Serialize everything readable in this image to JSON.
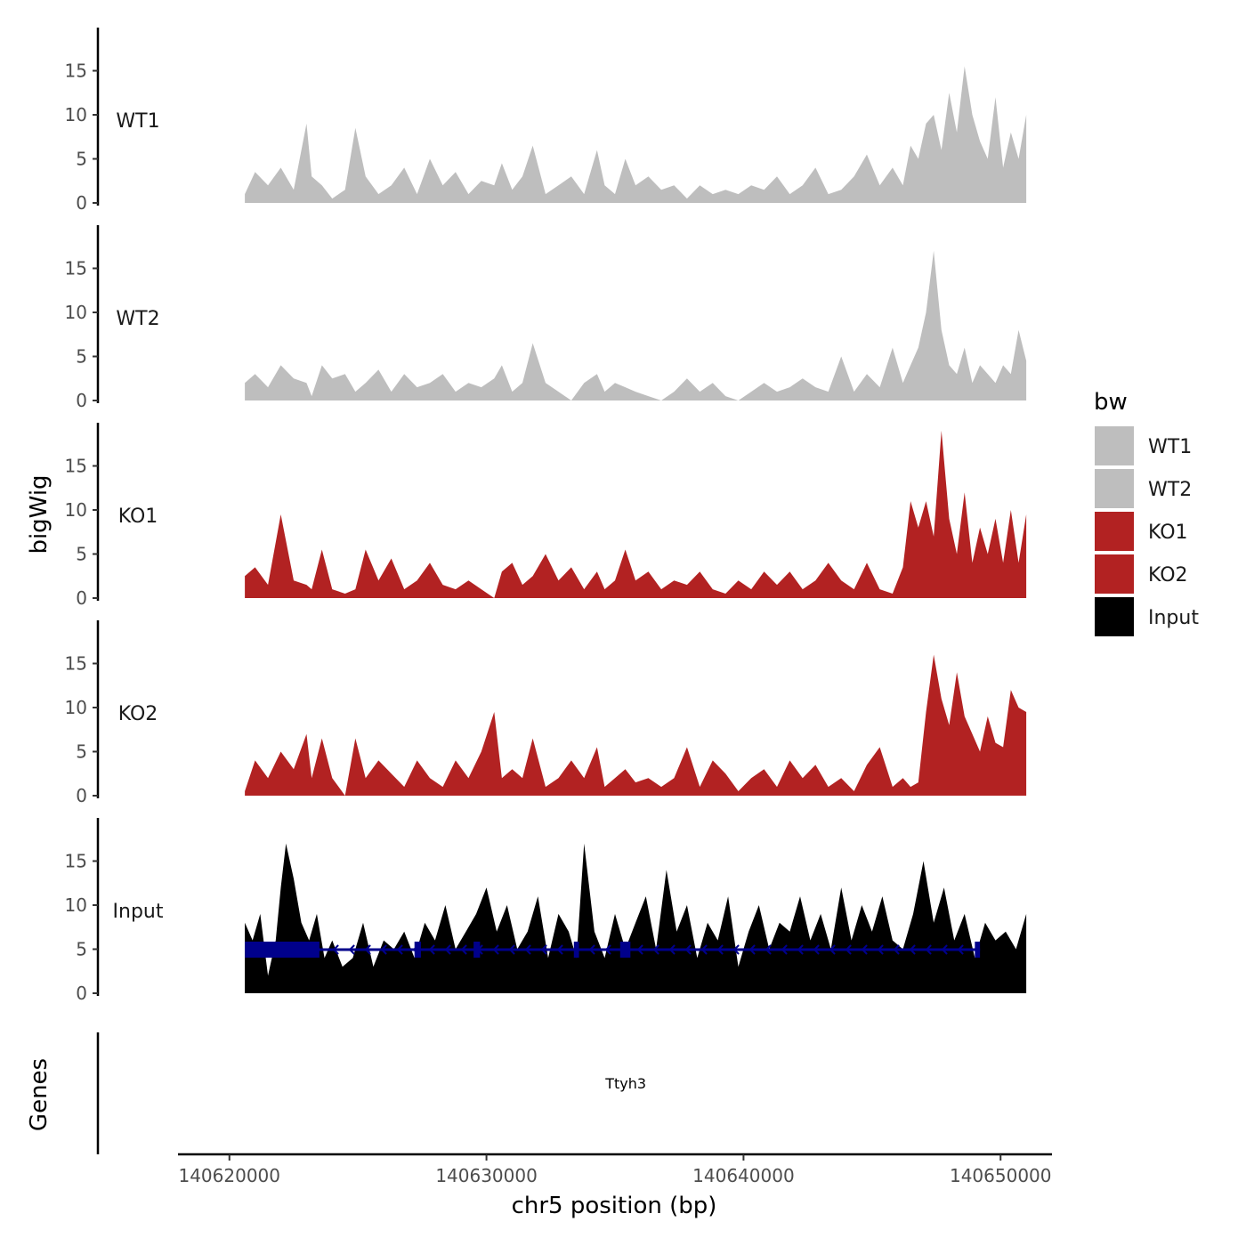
{
  "chart_data": {
    "type": "area",
    "xlabel": "chr5 position (bp)",
    "ylabel": "bigWig",
    "genes_label": "Genes",
    "xlim": [
      140618000,
      140652000
    ],
    "x_ticks": [
      140620000,
      140630000,
      140640000,
      140650000
    ],
    "x_tick_labels": [
      "140620000",
      "140630000",
      "140640000",
      "140650000"
    ],
    "ylim": [
      0,
      20
    ],
    "y_ticks": [
      0,
      5,
      10,
      15
    ],
    "y_tick_labels": [
      "0",
      "5",
      "10",
      "15"
    ],
    "legend": {
      "title": "bw",
      "entries": [
        {
          "label": "WT1",
          "color": "#bebebe"
        },
        {
          "label": "WT2",
          "color": "#bebebe"
        },
        {
          "label": "KO1",
          "color": "#b22222"
        },
        {
          "label": "KO2",
          "color": "#b22222"
        },
        {
          "label": "Input",
          "color": "#000000"
        }
      ]
    },
    "series": [
      {
        "name": "WT1",
        "color": "#bebebe",
        "x": [
          140620600,
          140621000,
          140621500,
          140622000,
          140622500,
          140623000,
          140623200,
          140623600,
          140624000,
          140624500,
          140624900,
          140625300,
          140625800,
          140626300,
          140626800,
          140627300,
          140627800,
          140628300,
          140628800,
          140629300,
          140629800,
          140630300,
          140630600,
          140631000,
          140631400,
          140631800,
          140632300,
          140632800,
          140633300,
          140633800,
          140634300,
          140634600,
          140635000,
          140635400,
          140635800,
          140636300,
          140636800,
          140637300,
          140637800,
          140638300,
          140638800,
          140639300,
          140639800,
          140640300,
          140640800,
          140641300,
          140641800,
          140642300,
          140642800,
          140643300,
          140643800,
          140644300,
          140644800,
          140645300,
          140645800,
          140646200,
          140646500,
          140646800,
          140647100,
          140647400,
          140647700,
          140648000,
          140648300,
          140648600,
          140648900,
          140649200,
          140649500,
          140649800,
          140650100,
          140650400,
          140650700,
          140651000
        ],
        "values": [
          1,
          3.5,
          2,
          4,
          1.5,
          9,
          3,
          2,
          0.5,
          1.5,
          8.5,
          3,
          1,
          2,
          4,
          1,
          5,
          2,
          3.5,
          1,
          2.5,
          2,
          4.5,
          1.5,
          3,
          6.5,
          1,
          2,
          3,
          1,
          6,
          2,
          1,
          5,
          2,
          3,
          1.5,
          2,
          0.5,
          2,
          1,
          1.5,
          1,
          2,
          1.5,
          3,
          1,
          2,
          4,
          1,
          1.5,
          3,
          5.5,
          2,
          4,
          2,
          6.5,
          5,
          9,
          10,
          6,
          12.5,
          8,
          15.5,
          10,
          7,
          5,
          12,
          4,
          8,
          5,
          10
        ]
      },
      {
        "name": "WT2",
        "color": "#bebebe",
        "x": [
          140620600,
          140621000,
          140621500,
          140622000,
          140622500,
          140623000,
          140623200,
          140623600,
          140624000,
          140624500,
          140624900,
          140625300,
          140625800,
          140626300,
          140626800,
          140627300,
          140627800,
          140628300,
          140628800,
          140629300,
          140629800,
          140630300,
          140630600,
          140631000,
          140631400,
          140631800,
          140632300,
          140632800,
          140633300,
          140633800,
          140634300,
          140634600,
          140635000,
          140635400,
          140635800,
          140636300,
          140636800,
          140637300,
          140637800,
          140638300,
          140638800,
          140639300,
          140639800,
          140640300,
          140640800,
          140641300,
          140641800,
          140642300,
          140642800,
          140643300,
          140643800,
          140644300,
          140644800,
          140645300,
          140645800,
          140646200,
          140646500,
          140646800,
          140647100,
          140647400,
          140647700,
          140648000,
          140648300,
          140648600,
          140648900,
          140649200,
          140649500,
          140649800,
          140650100,
          140650400,
          140650700,
          140651000
        ],
        "values": [
          2,
          3,
          1.5,
          4,
          2.5,
          2,
          0.5,
          4,
          2.5,
          3,
          1,
          2,
          3.5,
          1,
          3,
          1.5,
          2,
          3,
          1,
          2,
          1.5,
          2.5,
          4,
          1,
          2,
          6.5,
          2,
          1,
          0,
          2,
          3,
          1,
          2,
          1.5,
          1,
          0.5,
          0,
          1,
          2.5,
          1,
          2,
          0.5,
          0,
          1,
          2,
          1,
          1.5,
          2.5,
          1.5,
          1,
          5,
          1,
          3,
          1.5,
          6,
          2,
          4,
          6,
          10,
          17,
          8,
          4,
          3,
          6,
          2,
          4,
          3,
          2,
          4,
          3,
          8,
          4.5
        ]
      },
      {
        "name": "KO1",
        "color": "#b22222",
        "x": [
          140620600,
          140621000,
          140621500,
          140622000,
          140622500,
          140623000,
          140623200,
          140623600,
          140624000,
          140624500,
          140624900,
          140625300,
          140625800,
          140626300,
          140626800,
          140627300,
          140627800,
          140628300,
          140628800,
          140629300,
          140629800,
          140630300,
          140630600,
          140631000,
          140631400,
          140631800,
          140632300,
          140632800,
          140633300,
          140633800,
          140634300,
          140634600,
          140635000,
          140635400,
          140635800,
          140636300,
          140636800,
          140637300,
          140637800,
          140638300,
          140638800,
          140639300,
          140639800,
          140640300,
          140640800,
          140641300,
          140641800,
          140642300,
          140642800,
          140643300,
          140643800,
          140644300,
          140644800,
          140645300,
          140645800,
          140646200,
          140646500,
          140646800,
          140647100,
          140647400,
          140647700,
          140648000,
          140648300,
          140648600,
          140648900,
          140649200,
          140649500,
          140649800,
          140650100,
          140650400,
          140650700,
          140651000
        ],
        "values": [
          2.5,
          3.5,
          1.5,
          9.5,
          2,
          1.5,
          1,
          5.5,
          1,
          0.5,
          1,
          5.5,
          2,
          4.5,
          1,
          2,
          4,
          1.5,
          1,
          2,
          1,
          0,
          3,
          4,
          1.5,
          2.5,
          5,
          2,
          3.5,
          1,
          3,
          1,
          2,
          5.5,
          2,
          3,
          1,
          2,
          1.5,
          3,
          1,
          0.5,
          2,
          1,
          3,
          1.5,
          3,
          1,
          2,
          4,
          2,
          1,
          4,
          1,
          0.5,
          3.5,
          11,
          8,
          11,
          7,
          19,
          9,
          5,
          12,
          4,
          8,
          5,
          9,
          4,
          10,
          4,
          9.5
        ]
      },
      {
        "name": "KO2",
        "color": "#b22222",
        "x": [
          140620600,
          140621000,
          140621500,
          140622000,
          140622500,
          140623000,
          140623200,
          140623600,
          140624000,
          140624500,
          140624900,
          140625300,
          140625800,
          140626300,
          140626800,
          140627300,
          140627800,
          140628300,
          140628800,
          140629300,
          140629800,
          140630300,
          140630600,
          140631000,
          140631400,
          140631800,
          140632300,
          140632800,
          140633300,
          140633800,
          140634300,
          140634600,
          140635000,
          140635400,
          140635800,
          140636300,
          140636800,
          140637300,
          140637800,
          140638300,
          140638800,
          140639300,
          140639800,
          140640300,
          140640800,
          140641300,
          140641800,
          140642300,
          140642800,
          140643300,
          140643800,
          140644300,
          140644800,
          140645300,
          140645800,
          140646200,
          140646500,
          140646800,
          140647100,
          140647400,
          140647700,
          140648000,
          140648300,
          140648600,
          140648900,
          140649200,
          140649500,
          140649800,
          140650100,
          140650400,
          140650700,
          140651000
        ],
        "values": [
          0.5,
          4,
          2,
          5,
          3,
          7,
          2,
          6.5,
          2,
          0,
          6.5,
          2,
          4,
          2.5,
          1,
          4,
          2,
          1,
          4,
          2,
          5,
          9.5,
          2,
          3,
          2,
          6.5,
          1,
          2,
          4,
          2,
          5.5,
          1,
          2,
          3,
          1.5,
          2,
          1,
          2,
          5.5,
          1,
          4,
          2.5,
          0.5,
          2,
          3,
          1,
          4,
          2,
          3.5,
          1,
          2,
          0.5,
          3.5,
          5.5,
          1,
          2,
          1,
          1.5,
          9.5,
          16,
          11,
          8,
          14,
          9,
          7,
          5,
          9,
          6,
          5.5,
          12,
          10,
          9.5
        ]
      },
      {
        "name": "Input",
        "color": "#000000",
        "x": [
          140620600,
          140620900,
          140621200,
          140621500,
          140621800,
          140622000,
          140622200,
          140622500,
          140622800,
          140623100,
          140623400,
          140623700,
          140624000,
          140624400,
          140624800,
          140625200,
          140625600,
          140626000,
          140626400,
          140626800,
          140627200,
          140627600,
          140628000,
          140628400,
          140628800,
          140629200,
          140629600,
          140630000,
          140630400,
          140630800,
          140631200,
          140631600,
          140632000,
          140632400,
          140632800,
          140633200,
          140633500,
          140633800,
          140634200,
          140634600,
          140635000,
          140635400,
          140635800,
          140636200,
          140636600,
          140637000,
          140637400,
          140637800,
          140638200,
          140638600,
          140639000,
          140639400,
          140639800,
          140640200,
          140640600,
          140641000,
          140641400,
          140641800,
          140642200,
          140642600,
          140643000,
          140643400,
          140643800,
          140644200,
          140644600,
          140645000,
          140645400,
          140645800,
          140646200,
          140646600,
          140647000,
          140647400,
          140647800,
          140648200,
          140648600,
          140649000,
          140649400,
          140649800,
          140650200,
          140650600,
          140651000
        ],
        "values": [
          8,
          6,
          9,
          2,
          6,
          12,
          17,
          13,
          8,
          6,
          9,
          4,
          6,
          3,
          4,
          8,
          3,
          6,
          5,
          7,
          4,
          8,
          6,
          10,
          5,
          7,
          9,
          12,
          7,
          10,
          5,
          7,
          11,
          4,
          9,
          7,
          4,
          17,
          7,
          4,
          9,
          5,
          8,
          11,
          5,
          14,
          7,
          10,
          4,
          8,
          6,
          11,
          3,
          7,
          10,
          5,
          8,
          7,
          11,
          6,
          9,
          5,
          12,
          6,
          10,
          7,
          11,
          6,
          5,
          9,
          15,
          8,
          12,
          6,
          9,
          4,
          8,
          6,
          7,
          5,
          9
        ]
      }
    ],
    "gene": {
      "name": "Ttyh3",
      "strand": "-",
      "start": 140620600,
      "end": 140649200,
      "color": "#00008b",
      "exons": [
        [
          140620600,
          140623500
        ],
        [
          140627200,
          140627450
        ],
        [
          140629500,
          140629750
        ],
        [
          140633400,
          140633600
        ],
        [
          140635200,
          140635600
        ],
        [
          140649000,
          140649200
        ]
      ]
    }
  }
}
